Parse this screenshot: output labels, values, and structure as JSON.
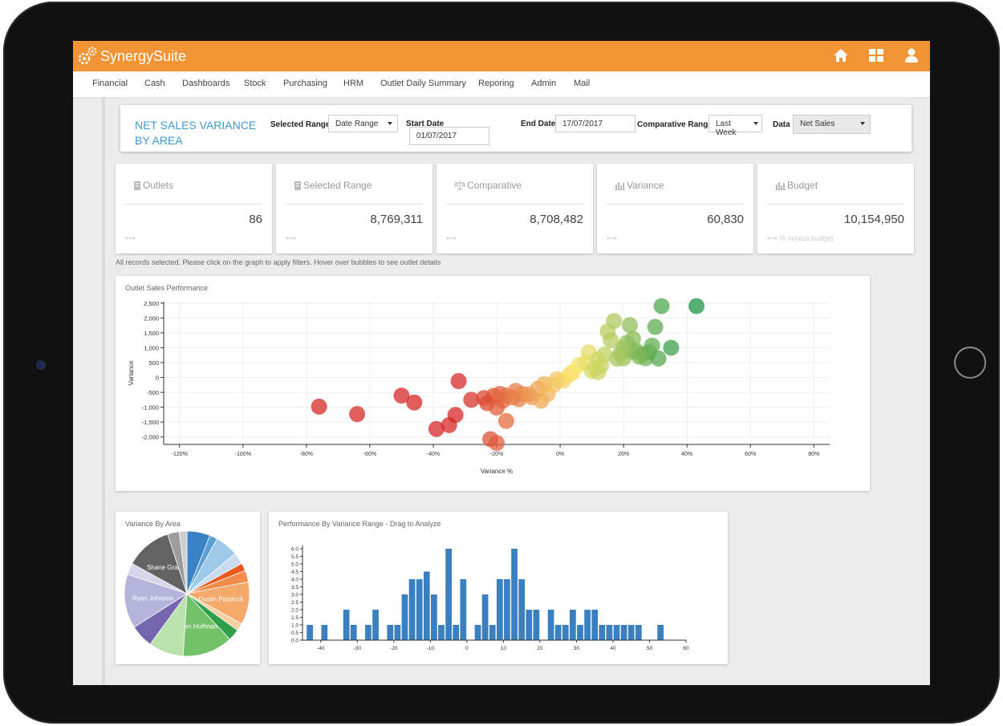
{
  "app": {
    "name": "SynergySuite"
  },
  "header_icons": [
    "home-icon",
    "dashboard-grid-icon",
    "user-icon"
  ],
  "nav": [
    "Financial",
    "Cash",
    "Dashboards",
    "Stock",
    "Purchasing",
    "HRM",
    "Outlet Daily Summary",
    "Reporing",
    "Admin",
    "Mail"
  ],
  "filters": {
    "title": "NET SALES VARIANCE BY AREA",
    "selected_range_label": "Selected Range",
    "selected_range_value": "Date Range",
    "start_date_label": "Start Date",
    "start_date_value": "01/07/2017",
    "end_date_label": "End Date",
    "end_date_value": "17/07/2017",
    "comparative_label": "Comparative Range",
    "comparative_value": "Last Week",
    "data_label": "Data",
    "data_value": "Net Sales"
  },
  "cards": [
    {
      "title": "Outlets",
      "value": "86",
      "footer": "⟷",
      "icon": "building-icon"
    },
    {
      "title": "Selected Range",
      "value": "8,769,311",
      "footer": "⟷",
      "icon": "building-icon"
    },
    {
      "title": "Comparative",
      "value": "8,708,482",
      "footer": "⟷",
      "icon": "scale-icon"
    },
    {
      "title": "Variance",
      "value": "60,830",
      "footer": "⟷",
      "icon": "bar-chart-icon"
    },
    {
      "title": "Budget",
      "value": "10,154,950",
      "footer": "⟷ % versus budget",
      "icon": "bar-chart-icon"
    }
  ],
  "notice": "All records selected. Please click on the graph to apply filters. Hover over bubbles to see outlet details",
  "chart_data": [
    {
      "type": "scatter",
      "title": "Outlet Sales Performance",
      "xlabel": "Variance %",
      "ylabel": "Variance",
      "xlim": [
        -125,
        85
      ],
      "ylim": [
        -2250,
        2550
      ],
      "x_ticks": [
        "-120%",
        "-100%",
        "-80%",
        "-60%",
        "-40%",
        "-20%",
        "0%",
        "20%",
        "40%",
        "60%",
        "80%"
      ],
      "x_tick_values": [
        -120,
        -100,
        -80,
        -60,
        -40,
        -20,
        0,
        20,
        40,
        60,
        80
      ],
      "y_ticks": [
        "2,500",
        "2,000",
        "1,500",
        "1,000",
        "500",
        "0",
        "-500",
        "-1,000",
        "-1,500",
        "-2,000"
      ],
      "y_tick_values": [
        2500,
        2000,
        1500,
        1000,
        500,
        0,
        -500,
        -1000,
        -1500,
        -2000
      ],
      "points": [
        [
          -76,
          -980
        ],
        [
          -64,
          -1230
        ],
        [
          -50,
          -610
        ],
        [
          -46,
          -840
        ],
        [
          -39,
          -1730
        ],
        [
          -35,
          -1600
        ],
        [
          -33,
          -1260
        ],
        [
          -28,
          -750
        ],
        [
          -24,
          -690
        ],
        [
          -22,
          -2070
        ],
        [
          -20,
          -2200
        ],
        [
          -21,
          -620
        ],
        [
          -23,
          -860
        ],
        [
          -19,
          -550
        ],
        [
          -17,
          -600
        ],
        [
          -18,
          -780
        ],
        [
          -20,
          -1010
        ],
        [
          -17,
          -1460
        ],
        [
          -15,
          -670
        ],
        [
          -14,
          -450
        ],
        [
          -12,
          -550
        ],
        [
          -13,
          -730
        ],
        [
          -9,
          -660
        ],
        [
          -10,
          -560
        ],
        [
          -6,
          -780
        ],
        [
          -7,
          -380
        ],
        [
          -5,
          -220
        ],
        [
          -4,
          -560
        ],
        [
          -2,
          -250
        ],
        [
          -1,
          -60
        ],
        [
          1,
          -100
        ],
        [
          3,
          100
        ],
        [
          4,
          180
        ],
        [
          6,
          420
        ],
        [
          8,
          500
        ],
        [
          9,
          850
        ],
        [
          10,
          220
        ],
        [
          11,
          320
        ],
        [
          12,
          180
        ],
        [
          13,
          400
        ],
        [
          14,
          770
        ],
        [
          15,
          1550
        ],
        [
          16,
          1250
        ],
        [
          17,
          1900
        ],
        [
          19,
          800
        ],
        [
          20,
          650
        ],
        [
          21,
          1160
        ],
        [
          22,
          1760
        ],
        [
          23,
          1300
        ],
        [
          23,
          870
        ],
        [
          24,
          900
        ],
        [
          26,
          780
        ],
        [
          27,
          650
        ],
        [
          28,
          850
        ],
        [
          29,
          1070
        ],
        [
          30,
          1700
        ],
        [
          31,
          640
        ],
        [
          32,
          2400
        ],
        [
          35,
          1000
        ],
        [
          43,
          2400
        ],
        [
          -32,
          -120
        ],
        [
          20,
          1000
        ],
        [
          25,
          700
        ],
        [
          12,
          610
        ],
        [
          18,
          630
        ]
      ]
    },
    {
      "type": "pie",
      "title": "Variance By Area",
      "slices": [
        {
          "label": "",
          "value": 6,
          "color": "#3a82c4"
        },
        {
          "label": "",
          "value": 2,
          "color": "#5b9fd6"
        },
        {
          "label": "",
          "value": 6,
          "color": "#9ec9e8"
        },
        {
          "label": "",
          "value": 3,
          "color": "#c8def0"
        },
        {
          "label": "",
          "value": 2,
          "color": "#e8591f"
        },
        {
          "label": "",
          "value": 3,
          "color": "#f58b4b"
        },
        {
          "label": "Dustin Paddock",
          "value": 11,
          "color": "#f5a96b"
        },
        {
          "label": "",
          "value": 2,
          "color": "#f9cfa4"
        },
        {
          "label": "",
          "value": 3,
          "color": "#2f9f49"
        },
        {
          "label": "Ken Hoffman",
          "value": 13,
          "color": "#73c26a"
        },
        {
          "label": "",
          "value": 9,
          "color": "#b9e2ac"
        },
        {
          "label": "",
          "value": 6,
          "color": "#7566b0"
        },
        {
          "label": "Ryan Johnson",
          "value": 14,
          "color": "#b4b4dc"
        },
        {
          "label": "",
          "value": 3,
          "color": "#d6d6ec"
        },
        {
          "label": "Shane Grant",
          "value": 12,
          "color": "#636363"
        },
        {
          "label": "",
          "value": 3,
          "color": "#9c9c9c"
        },
        {
          "label": "",
          "value": 2,
          "color": "#cfcfcf"
        }
      ]
    },
    {
      "type": "bar",
      "title": "Performance By Variance Range - Drag to Analyze",
      "xlim": [
        -45,
        60
      ],
      "ylim": [
        0,
        6
      ],
      "x_ticks": [
        "-40",
        "-30",
        "-20",
        "-10",
        "0",
        "10",
        "20",
        "30",
        "40",
        "50",
        "60"
      ],
      "x_tick_values": [
        -40,
        -30,
        -20,
        -10,
        0,
        10,
        20,
        30,
        40,
        50,
        60
      ],
      "y_ticks": [
        "0.0",
        "0.5",
        "1.0",
        "1.5",
        "2.0",
        "2.5",
        "3.0",
        "3.5",
        "4.0",
        "4.5",
        "5.0",
        "5.5",
        "6.0"
      ],
      "y_tick_values": [
        0,
        0.5,
        1,
        1.5,
        2,
        2.5,
        3,
        3.5,
        4,
        4.5,
        5,
        5.5,
        6
      ],
      "bars": [
        [
          -43,
          1
        ],
        [
          -39,
          1
        ],
        [
          -33,
          2
        ],
        [
          -31,
          1
        ],
        [
          -27,
          1
        ],
        [
          -25,
          2
        ],
        [
          -21,
          1
        ],
        [
          -19,
          1
        ],
        [
          -17,
          3
        ],
        [
          -15,
          4
        ],
        [
          -13,
          4
        ],
        [
          -11,
          4.5
        ],
        [
          -9,
          3
        ],
        [
          -7,
          1
        ],
        [
          -5,
          6
        ],
        [
          -3,
          1
        ],
        [
          -1,
          4
        ],
        [
          3,
          1
        ],
        [
          5,
          3
        ],
        [
          7,
          1
        ],
        [
          9,
          4
        ],
        [
          11,
          4
        ],
        [
          13,
          6
        ],
        [
          15,
          4
        ],
        [
          17,
          2
        ],
        [
          19,
          2
        ],
        [
          23,
          2
        ],
        [
          25,
          1
        ],
        [
          27,
          1
        ],
        [
          29,
          2
        ],
        [
          31,
          1
        ],
        [
          33,
          2
        ],
        [
          35,
          2
        ],
        [
          37,
          1
        ],
        [
          39,
          1
        ],
        [
          41,
          1
        ],
        [
          43,
          1
        ],
        [
          45,
          1
        ],
        [
          47,
          1
        ],
        [
          53,
          1
        ]
      ]
    }
  ]
}
